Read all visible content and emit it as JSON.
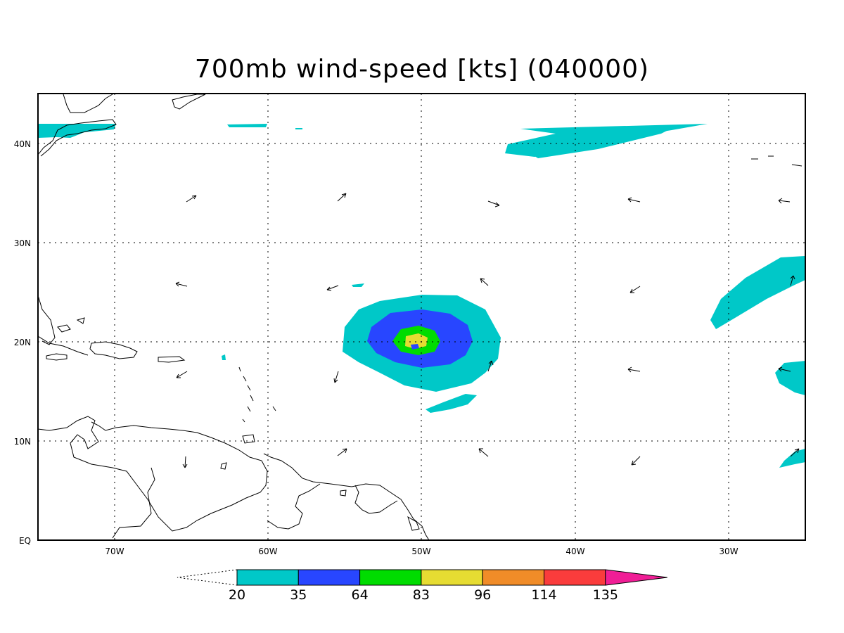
{
  "title": "700mb wind-speed [kts] (040000)",
  "axes": {
    "lon_labels": [
      "70W",
      "60W",
      "50W",
      "40W",
      "30W"
    ],
    "lat_labels": [
      "EQ",
      "10N",
      "20N",
      "30N",
      "40N"
    ]
  },
  "colorbar": {
    "thresholds": [
      "20",
      "35",
      "64",
      "83",
      "96",
      "114",
      "135"
    ],
    "colors": [
      "#00c8c8",
      "#2846ff",
      "#00dc00",
      "#e6dc32",
      "#f08c28",
      "#fa3c3c",
      "#f01e96"
    ]
  },
  "chart_data": {
    "type": "contour-map",
    "title": "700mb wind-speed [kts] (040000)",
    "lon_range": [
      -75,
      -25
    ],
    "lat_range": [
      0,
      45
    ],
    "grid": true,
    "levels": [
      20,
      35,
      64,
      83,
      96,
      114,
      135
    ],
    "storm_center": {
      "lon": -50.5,
      "lat": 20,
      "max_band": "83-96"
    }
  }
}
